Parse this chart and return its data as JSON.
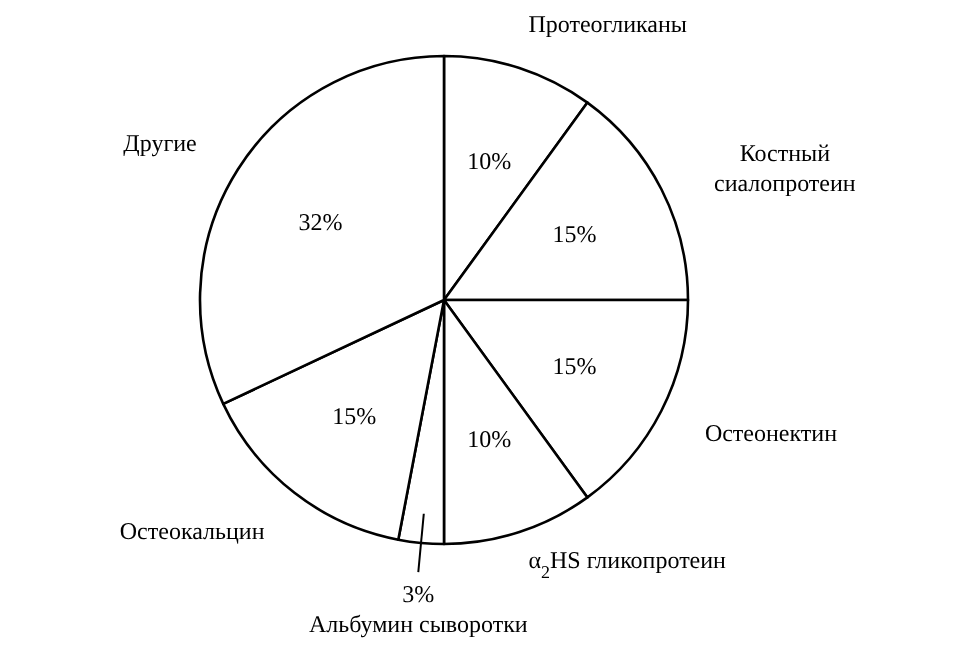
{
  "chart_data": {
    "type": "pie",
    "categories": [
      "Протеогликаны",
      "Костный сиалопротеин",
      "Остеонектин",
      "α$_{2}$HS гликопротеин",
      "Альбумин сыворотки",
      "Остеокальцин",
      "Другие"
    ],
    "values": [
      10,
      15,
      15,
      10,
      3,
      15,
      32
    ],
    "colors": [
      "#ffffff",
      "#ffffff",
      "#ffffff",
      "#ffffff",
      "#ffffff",
      "#ffffff",
      "#ffffff"
    ],
    "value_labels": [
      "10%",
      "15%",
      "15%",
      "10%",
      "3%",
      "15%",
      "32%"
    ]
  }
}
